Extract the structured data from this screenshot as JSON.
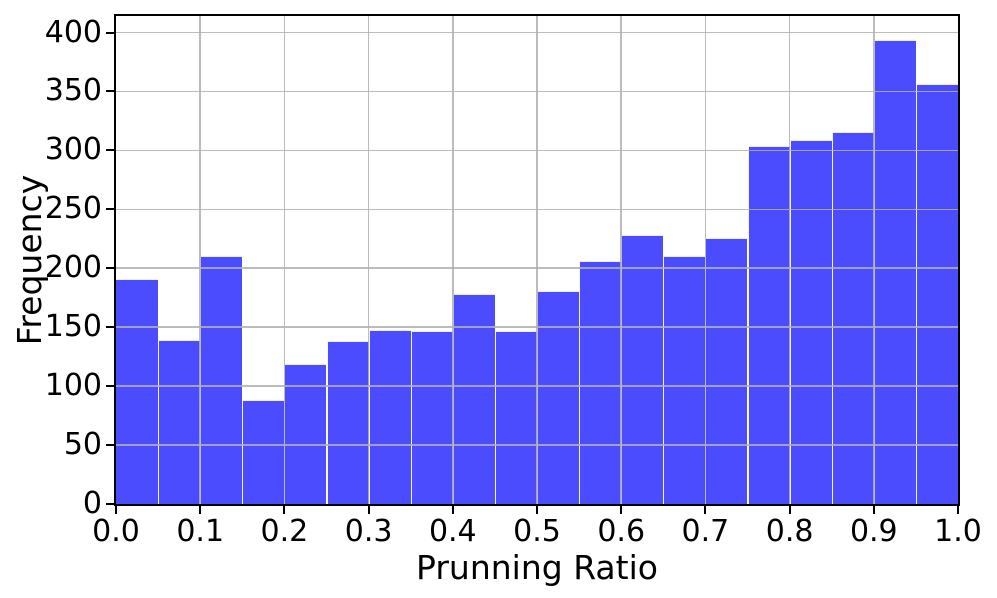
{
  "chart_data": {
    "type": "bar",
    "subtype": "histogram",
    "title": "",
    "xlabel": "Prunning Ratio",
    "ylabel": "Frequency",
    "xlim": [
      0.0,
      1.0
    ],
    "ylim": [
      0,
      414
    ],
    "grid": true,
    "grid_on_top_of_bars": true,
    "legend": null,
    "bin_width": 0.05,
    "bin_edges": [
      0.0,
      0.05,
      0.1,
      0.15,
      0.2,
      0.25,
      0.3,
      0.35,
      0.4,
      0.45,
      0.5,
      0.55,
      0.6,
      0.65,
      0.7,
      0.75,
      0.8,
      0.85,
      0.9,
      0.95,
      1.0
    ],
    "values": [
      191,
      139,
      210,
      88,
      119,
      138,
      148,
      147,
      178,
      147,
      181,
      206,
      228,
      210,
      226,
      304,
      309,
      316,
      394,
      356
    ],
    "x_ticks": [
      {
        "value": 0.0,
        "label": "0.0"
      },
      {
        "value": 0.1,
        "label": "0.1"
      },
      {
        "value": 0.2,
        "label": "0.2"
      },
      {
        "value": 0.3,
        "label": "0.3"
      },
      {
        "value": 0.4,
        "label": "0.4"
      },
      {
        "value": 0.5,
        "label": "0.5"
      },
      {
        "value": 0.6,
        "label": "0.6"
      },
      {
        "value": 0.7,
        "label": "0.7"
      },
      {
        "value": 0.8,
        "label": "0.8"
      },
      {
        "value": 0.9,
        "label": "0.9"
      },
      {
        "value": 1.0,
        "label": "1.0"
      }
    ],
    "y_ticks": [
      {
        "value": 0,
        "label": "0"
      },
      {
        "value": 50,
        "label": "50"
      },
      {
        "value": 100,
        "label": "100"
      },
      {
        "value": 150,
        "label": "150"
      },
      {
        "value": 200,
        "label": "200"
      },
      {
        "value": 250,
        "label": "250"
      },
      {
        "value": 300,
        "label": "300"
      },
      {
        "value": 350,
        "label": "350"
      },
      {
        "value": 400,
        "label": "400"
      }
    ],
    "colors": {
      "bar_fill": "#4c4cff",
      "bar_edge": "#ffffff",
      "grid": "#b0b0b0",
      "spine": "#000000",
      "text": "#000000",
      "background": "#ffffff"
    }
  }
}
